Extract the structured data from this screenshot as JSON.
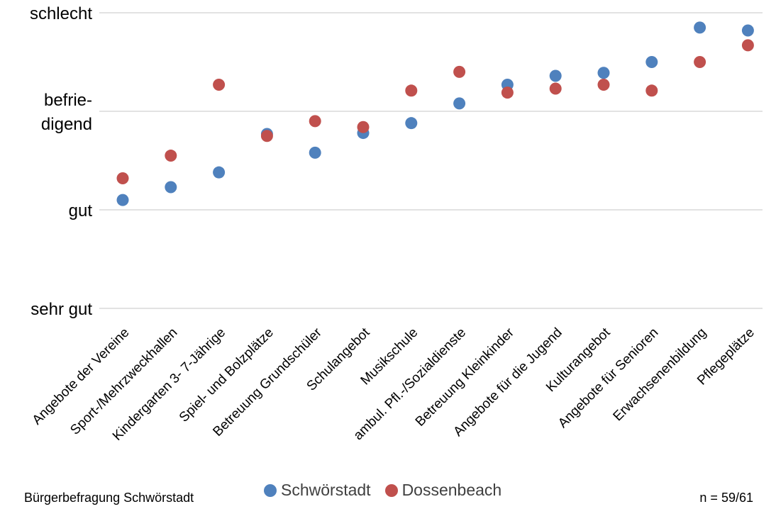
{
  "chart_data": {
    "type": "scatter",
    "categories": [
      "Angebote der Vereine",
      "Sport-/Mehrzweckhallen",
      "Kindergarten 3- 7-Jährige",
      "Spiel- und Bolzplätze",
      "Betreuung Grundschüler",
      "Schulangebot",
      "Musikschule",
      "ambul. Pfl.-/Sozialdienste",
      "Betreuung Kleinkinder",
      "Angebote für die Jugend",
      "Kulturangebot",
      "Angebote für Senioren",
      "Erwachsenenbildung",
      "Pflegeplätze"
    ],
    "y_ticks": [
      {
        "value": 1,
        "label_lines": [
          "sehr gut"
        ]
      },
      {
        "value": 2,
        "label_lines": [
          "gut"
        ]
      },
      {
        "value": 3,
        "label_lines": [
          "befrie-",
          "digend"
        ]
      },
      {
        "value": 4,
        "label_lines": [
          "schlecht"
        ]
      }
    ],
    "ylim": [
      1,
      4
    ],
    "grid": true,
    "series": [
      {
        "name": "Schwörstadt",
        "color": "#4f81bd",
        "values": [
          2.1,
          2.23,
          2.38,
          2.77,
          2.58,
          2.78,
          2.88,
          3.08,
          3.27,
          3.36,
          3.39,
          3.5,
          3.85,
          3.82
        ]
      },
      {
        "name": "Dossenbeach",
        "color": "#c0504d",
        "values": [
          2.32,
          2.55,
          3.27,
          2.75,
          2.9,
          2.84,
          3.21,
          3.4,
          3.19,
          3.23,
          3.27,
          3.21,
          3.5,
          3.67
        ]
      }
    ],
    "legend_position": "bottom"
  },
  "footer": {
    "source": "Bürgerbefragung Schwörstadt",
    "sample": "n = 59/61"
  }
}
